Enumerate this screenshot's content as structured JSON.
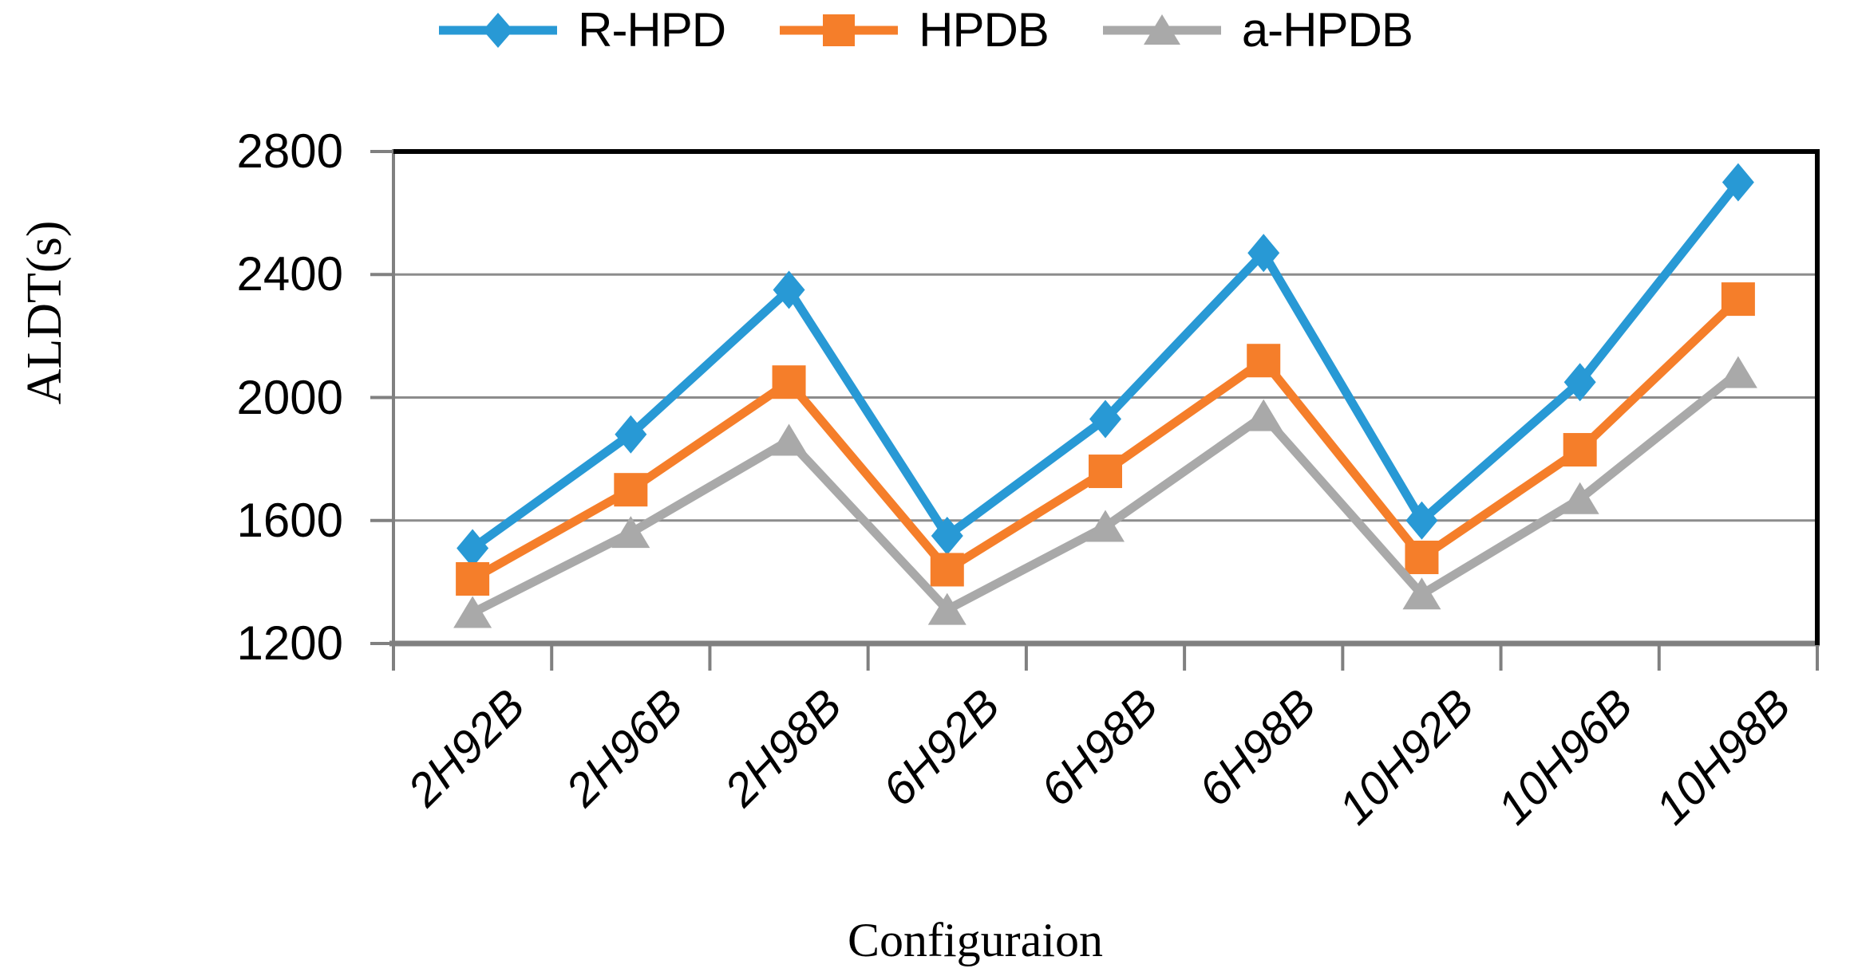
{
  "chart_data": {
    "type": "line",
    "title": "",
    "xlabel": "Configuraion",
    "ylabel": "ALDT(s)",
    "categories": [
      "2H92B",
      "2H96B",
      "2H98B",
      "6H92B",
      "6H98B",
      "6H98B",
      "10H92B",
      "10H96B",
      "10H98B"
    ],
    "series": [
      {
        "name": "R-HPD",
        "marker": "diamond",
        "color": "#2899D5",
        "values": [
          1510,
          1880,
          2350,
          1550,
          1930,
          2470,
          1600,
          2050,
          2700
        ]
      },
      {
        "name": "HPDB",
        "marker": "square",
        "color": "#F57E2A",
        "values": [
          1410,
          1700,
          2050,
          1440,
          1760,
          2120,
          1480,
          1830,
          2320
        ]
      },
      {
        "name": "a-HPDB",
        "marker": "triangle",
        "color": "#A9A9A9",
        "values": [
          1300,
          1560,
          1860,
          1310,
          1580,
          1940,
          1360,
          1670,
          2080
        ]
      }
    ],
    "ylim": [
      1200,
      2800
    ],
    "yticks": [
      1200,
      1600,
      2000,
      2400,
      2800
    ],
    "ytick_labels": [
      "1200",
      "1600",
      "2000",
      "2400",
      "2800"
    ],
    "grid": "horizontal",
    "legend_position": "top-center"
  },
  "colors": {
    "background": "#FFFFFF",
    "gridline": "#8C8C8C",
    "axis": "#808080",
    "plot_border": "#000000",
    "tick_text": "#000000"
  }
}
